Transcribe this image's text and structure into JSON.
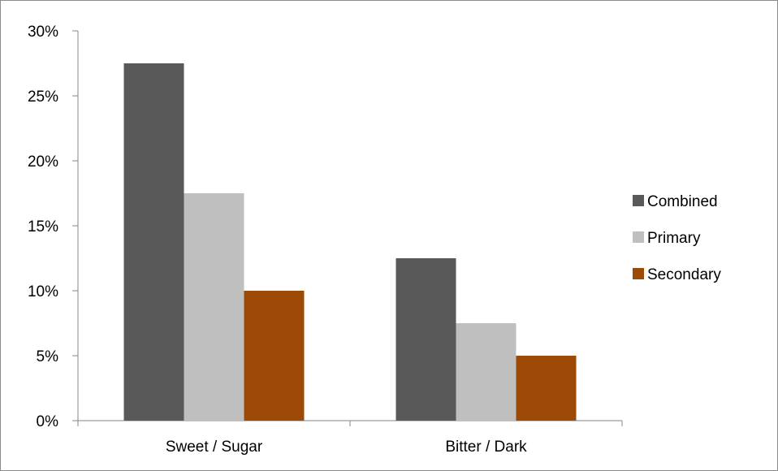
{
  "chart_data": {
    "type": "bar",
    "title": "",
    "xlabel": "",
    "ylabel": "",
    "categories": [
      "Sweet / Sugar",
      "Bitter / Dark"
    ],
    "series": [
      {
        "name": "Combined",
        "color": "#595959",
        "values": [
          27.5,
          12.5
        ]
      },
      {
        "name": "Primary",
        "color": "#bfbfbf",
        "values": [
          17.5,
          7.5
        ]
      },
      {
        "name": "Secondary",
        "color": "#9c4a06",
        "values": [
          10,
          5
        ]
      }
    ],
    "ylim": [
      0,
      30
    ],
    "yticks": [
      {
        "value": 0,
        "label": "0%"
      },
      {
        "value": 5,
        "label": "5%"
      },
      {
        "value": 10,
        "label": "10%"
      },
      {
        "value": 15,
        "label": "15%"
      },
      {
        "value": 20,
        "label": "20%"
      },
      {
        "value": 25,
        "label": "25%"
      },
      {
        "value": 30,
        "label": "30%"
      }
    ],
    "grid": false,
    "legend_position": "right"
  }
}
